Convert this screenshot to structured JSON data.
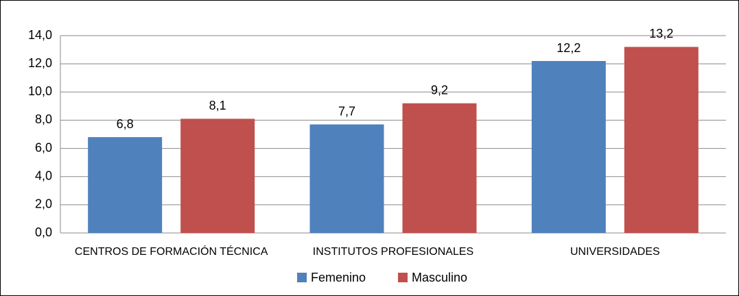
{
  "chart_data": {
    "type": "bar",
    "categories": [
      "CENTROS DE FORMACIÓN TÉCNICA",
      "INSTITUTOS PROFESIONALES",
      "UNIVERSIDADES"
    ],
    "series": [
      {
        "name": "Femenino",
        "color": "#4f81bd",
        "values": [
          6.8,
          7.7,
          12.2
        ],
        "value_labels": [
          "6,8",
          "7,7",
          "12,2"
        ]
      },
      {
        "name": "Masculino",
        "color": "#c0504d",
        "values": [
          8.1,
          9.2,
          13.2
        ],
        "value_labels": [
          "8,1",
          "9,2",
          "13,2"
        ]
      }
    ],
    "ylim": [
      0,
      14
    ],
    "yticks": [
      {
        "value": 0,
        "label": "0,0"
      },
      {
        "value": 2,
        "label": "2,0"
      },
      {
        "value": 4,
        "label": "4,0"
      },
      {
        "value": 6,
        "label": "6,0"
      },
      {
        "value": 8,
        "label": "8,0"
      },
      {
        "value": 10,
        "label": "10,0"
      },
      {
        "value": 12,
        "label": "12,0"
      },
      {
        "value": 14,
        "label": "14,0"
      }
    ],
    "grid": true,
    "legend": "bottom"
  }
}
